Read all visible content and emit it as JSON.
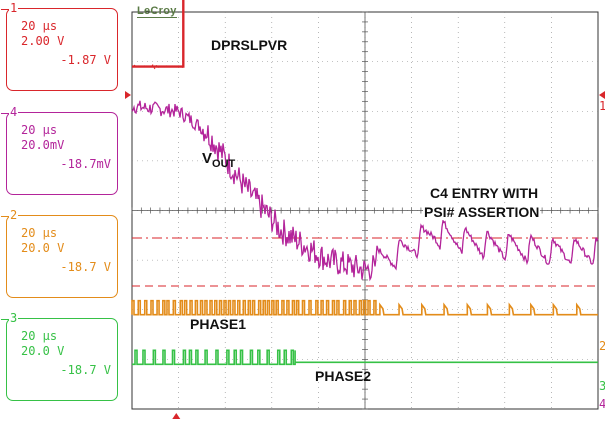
{
  "brand": "LeCroy",
  "channels": [
    {
      "id": "1",
      "timebase": "20 µs",
      "scale": "2.00 V",
      "offset": "-1.87 V",
      "color": "#d9262b"
    },
    {
      "id": "4",
      "timebase": "20 µs",
      "scale": "20.0mV",
      "offset": "-18.7mV",
      "color": "#b3249a"
    },
    {
      "id": "2",
      "timebase": "20 µs",
      "scale": "20.0 V",
      "offset": "-18.7 V",
      "color": "#e38c1a"
    },
    {
      "id": "3",
      "timebase": "20 µs",
      "scale": "20.0 V",
      "offset": "-18.7 V",
      "color": "#36c146"
    }
  ],
  "annotations": {
    "dprslpvr": "DPRSLPVR",
    "vout_main": "V",
    "vout_sub": "OUT",
    "c4_line1": "C4 ENTRY WITH",
    "c4_line2": "PSI# ASSERTION",
    "phase1": "PHASE1",
    "phase2": "PHASE2"
  },
  "chart_data": {
    "type": "line",
    "grid": true,
    "x_divisions": 10,
    "y_divisions": 8,
    "time_per_div": "20 µs",
    "series": [
      {
        "name": "DPRSLPVR",
        "channel": "1",
        "color": "#d9262b",
        "description_points_div": [
          [
            0,
            6.9
          ],
          [
            1.1,
            6.9
          ],
          [
            1.1,
            8.9
          ],
          [
            10,
            8.9
          ]
        ]
      },
      {
        "name": "VOUT",
        "channel": "4",
        "color": "#b3249a",
        "description_points_div": [
          [
            0,
            6.1
          ],
          [
            1.0,
            6.0
          ],
          [
            1.6,
            5.6
          ],
          [
            2.4,
            4.5
          ],
          [
            3.2,
            3.6
          ],
          [
            4.2,
            3.0
          ],
          [
            5.0,
            2.8
          ],
          [
            5.8,
            3.1
          ],
          [
            6.5,
            3.5
          ],
          [
            7.2,
            3.3
          ],
          [
            8.0,
            3.2
          ],
          [
            9.0,
            3.1
          ],
          [
            10,
            3.1
          ]
        ]
      },
      {
        "name": "PHASE1",
        "channel": "2",
        "color": "#e38c1a",
        "description_points_div": [
          [
            0,
            1.9
          ],
          [
            5.3,
            1.9
          ],
          [
            10,
            1.9
          ]
        ]
      },
      {
        "name": "PHASE2",
        "channel": "3",
        "color": "#36c146",
        "description_points_div": [
          [
            0,
            0.9
          ],
          [
            3.5,
            0.9
          ],
          [
            3.5,
            0.95
          ],
          [
            10,
            0.95
          ]
        ]
      }
    ]
  }
}
